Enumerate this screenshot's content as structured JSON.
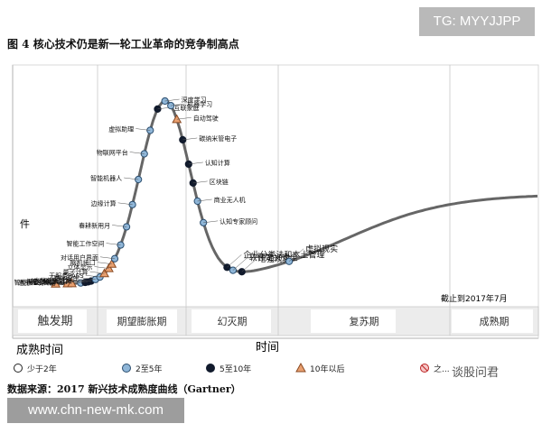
{
  "header": {
    "title": "图 4 核心技术仍是新一轮工业革命的竞争制高点",
    "source": "数据来源：2017 新兴技术成熟度曲线（Gartner）"
  },
  "watermarks": {
    "top": "TG: MYYJJPP",
    "bottom": "www.chn-new-mk.com",
    "brand": "谈股问君"
  },
  "chart_data": {
    "type": "hype-cycle",
    "x_axis_label": "时间",
    "y_axis_label": "件",
    "y_axis_marks": [
      "件"
    ],
    "date_note": "截止到2017年7月",
    "phases": [
      "触发期",
      "期望膨胀期",
      "幻灭期",
      "复苏期",
      "成熟期"
    ],
    "legend_title": "成熟时间",
    "legend": [
      {
        "label": "少于2年",
        "symbol": "circle-white"
      },
      {
        "label": "2至5年",
        "symbol": "circle-blue"
      },
      {
        "label": "5至10年",
        "symbol": "circle-black"
      },
      {
        "label": "10年以后",
        "symbol": "triangle-orange"
      },
      {
        "label": "之...",
        "symbol": "circle-red-x"
      }
    ],
    "technologies": [
      {
        "label": "智能微尘",
        "t": 0.04,
        "maturity": "10年以后"
      },
      {
        "label": "4D打印",
        "t": 0.12,
        "maturity": "10年以后"
      },
      {
        "label": "通用人工智能",
        "t": 0.15,
        "maturity": "10年以后"
      },
      {
        "label": "深度强化学习",
        "t": 0.21,
        "maturity": "2至5年"
      },
      {
        "label": "神经形态硬件",
        "t": 0.24,
        "maturity": "5至10年"
      },
      {
        "label": "人体机能增进",
        "t": 0.26,
        "maturity": "5至10年"
      },
      {
        "label": "5G",
        "t": 0.28,
        "maturity": "5至10年"
      },
      {
        "label": "数字孪生",
        "t": 0.31,
        "maturity": "2至5年"
      },
      {
        "label": "无服务PASS",
        "t": 0.34,
        "maturity": "2至5年"
      },
      {
        "label": "量子计算",
        "t": 0.37,
        "maturity": "10年以后"
      },
      {
        "label": "立体显示",
        "t": 0.4,
        "maturity": "10年以后"
      },
      {
        "label": "脑机接口",
        "t": 0.42,
        "maturity": "10年以后"
      },
      {
        "label": "对话用户界面",
        "t": 0.44,
        "maturity": "2至5年"
      },
      {
        "label": "智能工作空间",
        "t": 0.48,
        "maturity": "2至5年"
      },
      {
        "label": "春耕新用月",
        "t": 0.52,
        "maturity": "2至5年"
      },
      {
        "label": "边缘计算",
        "t": 0.56,
        "maturity": "2至5年"
      },
      {
        "label": "智能机器人",
        "t": 0.6,
        "maturity": "2至5年"
      },
      {
        "label": "物联网平台",
        "t": 0.64,
        "maturity": "2至5年"
      },
      {
        "label": "虚拟助理",
        "t": 0.68,
        "maturity": "2至5年"
      },
      {
        "label": "互联家庭",
        "t": 0.73,
        "maturity": "5至10年"
      },
      {
        "label": "深度学习",
        "t": 0.78,
        "maturity": "2至5年"
      },
      {
        "label": "机器学习",
        "t": 0.82,
        "maturity": "2至5年"
      },
      {
        "label": "自动驾驶",
        "t": 0.86,
        "maturity": "10年以后"
      },
      {
        "label": "碳纳米管电子",
        "t": 0.9,
        "maturity": "5至10年"
      },
      {
        "label": "认知计算",
        "t": 0.94,
        "maturity": "5至10年"
      },
      {
        "label": "区块链",
        "t": 0.97,
        "maturity": "5至10年"
      },
      {
        "label": "商业无人机",
        "t": 1.0,
        "maturity": "2至5年"
      },
      {
        "label": "认知专家顾问",
        "t": 1.04,
        "maturity": "2至5年"
      },
      {
        "label": "企业分类法和本土管理",
        "t": 1.2,
        "maturity": "5至10年"
      },
      {
        "label": "软件定义安全",
        "t": 1.24,
        "maturity": "2至5年"
      },
      {
        "label": "增强现实",
        "t": 1.3,
        "maturity": "5至10年"
      },
      {
        "label": "虚拟现实",
        "t": 1.62,
        "maturity": "2至5年"
      }
    ]
  }
}
